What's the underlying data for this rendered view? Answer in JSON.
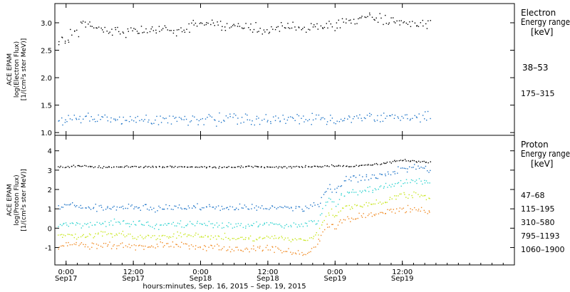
{
  "chart_data": [
    {
      "type": "scatter",
      "instrument_label": "ACE EPAM",
      "ylabel": "log(Electron Flux)",
      "yunit_label": "[1/(cm²s ster MeV)]",
      "ylim": [
        0.95,
        3.35
      ],
      "yticks": [
        "1.0",
        "1.5",
        "2.0",
        "2.5",
        "3.0"
      ],
      "legend_title_1": "Electron",
      "legend_title_2": "Energy range",
      "legend_unit": "[keV]",
      "series": [
        {
          "name": "38–53",
          "color": "#000000",
          "points": [
            [
              -0.5,
              2.7
            ],
            [
              -0.3,
              2.68
            ],
            [
              -0.1,
              2.72
            ],
            [
              0.1,
              2.7
            ],
            [
              0.3,
              2.74
            ],
            [
              0.5,
              2.72
            ],
            [
              0.8,
              2.8
            ],
            [
              1.0,
              2.76
            ],
            [
              1.3,
              2.8
            ],
            [
              1.6,
              2.75
            ],
            [
              1.9,
              2.78
            ],
            [
              2.1,
              2.8
            ],
            [
              2.4,
              3.05
            ],
            [
              3,
              3.02
            ],
            [
              4,
              2.97
            ],
            [
              5,
              2.92
            ],
            [
              6,
              2.88
            ],
            [
              8,
              2.87
            ],
            [
              10,
              2.85
            ],
            [
              12,
              2.86
            ],
            [
              14,
              2.87
            ],
            [
              16,
              2.86
            ],
            [
              18,
              2.88
            ],
            [
              19,
              2.8
            ],
            [
              20,
              2.9
            ],
            [
              22,
              2.95
            ],
            [
              24,
              3.02
            ],
            [
              26,
              3.0
            ],
            [
              28,
              2.96
            ],
            [
              30,
              2.94
            ],
            [
              32,
              2.92
            ],
            [
              34,
              2.9
            ],
            [
              36,
              2.9
            ],
            [
              38,
              2.91
            ],
            [
              40,
              2.93
            ],
            [
              42,
              2.94
            ],
            [
              44,
              2.92
            ],
            [
              46,
              2.93
            ],
            [
              47,
              2.95
            ],
            [
              48,
              2.97
            ],
            [
              50,
              3.0
            ],
            [
              52,
              3.05
            ],
            [
              54,
              3.08
            ],
            [
              56,
              3.07
            ],
            [
              58,
              3.05
            ],
            [
              60,
              3.03
            ],
            [
              62,
              3.02
            ],
            [
              64,
              3.01
            ],
            [
              65,
              3.0
            ]
          ]
        },
        {
          "name": "175–315",
          "color": "#1f74c7",
          "points": [
            [
              -0.5,
              1.24
            ],
            [
              1,
              1.24
            ],
            [
              3,
              1.27
            ],
            [
              5,
              1.25
            ],
            [
              7,
              1.24
            ],
            [
              9,
              1.25
            ],
            [
              11,
              1.23
            ],
            [
              13,
              1.26
            ],
            [
              15,
              1.25
            ],
            [
              17,
              1.24
            ],
            [
              19,
              1.27
            ],
            [
              21,
              1.25
            ],
            [
              23,
              1.26
            ],
            [
              25,
              1.25
            ],
            [
              27,
              1.24
            ],
            [
              29,
              1.26
            ],
            [
              31,
              1.25
            ],
            [
              33,
              1.24
            ],
            [
              35,
              1.26
            ],
            [
              37,
              1.25
            ],
            [
              39,
              1.24
            ],
            [
              41,
              1.26
            ],
            [
              43,
              1.27
            ],
            [
              45,
              1.25
            ],
            [
              47,
              1.24
            ],
            [
              49,
              1.26
            ],
            [
              51,
              1.27
            ],
            [
              53,
              1.28
            ],
            [
              55,
              1.27
            ],
            [
              57,
              1.28
            ],
            [
              59,
              1.29
            ],
            [
              61,
              1.28
            ],
            [
              63,
              1.3
            ],
            [
              65,
              1.29
            ]
          ]
        }
      ]
    },
    {
      "type": "scatter",
      "instrument_label": "ACE EPAM",
      "ylabel": "log(Proton Flux)",
      "yunit_label": "[1/(cm²s ster MeV)]",
      "ylim": [
        -1.9,
        4.8
      ],
      "yticks": [
        "-1",
        "0",
        "1",
        "2",
        "3",
        "4"
      ],
      "legend_title_1": "Proton",
      "legend_title_2": "Energy range",
      "legend_unit": "[keV]",
      "series": [
        {
          "name": "47–68",
          "color": "#000000",
          "points": [
            [
              -0.5,
              3.2
            ],
            [
              2,
              3.25
            ],
            [
              4,
              3.2
            ],
            [
              8,
              3.18
            ],
            [
              12,
              3.2
            ],
            [
              16,
              3.18
            ],
            [
              20,
              3.2
            ],
            [
              24,
              3.18
            ],
            [
              28,
              3.19
            ],
            [
              32,
              3.2
            ],
            [
              36,
              3.18
            ],
            [
              40,
              3.18
            ],
            [
              44,
              3.2
            ],
            [
              46,
              3.22
            ],
            [
              48,
              3.25
            ],
            [
              50,
              3.22
            ],
            [
              52,
              3.24
            ],
            [
              54,
              3.3
            ],
            [
              56,
              3.35
            ],
            [
              58,
              3.45
            ],
            [
              60,
              3.55
            ],
            [
              62,
              3.5
            ],
            [
              64,
              3.45
            ],
            [
              65,
              3.4
            ]
          ]
        },
        {
          "name": "115–195",
          "color": "#1f74c7",
          "points": [
            [
              -0.5,
              1.1
            ],
            [
              1,
              1.25
            ],
            [
              2,
              1.1
            ],
            [
              4,
              1.1
            ],
            [
              8,
              1.05
            ],
            [
              12,
              1.1
            ],
            [
              16,
              1.05
            ],
            [
              20,
              1.1
            ],
            [
              24,
              1.1
            ],
            [
              28,
              1.05
            ],
            [
              32,
              1.1
            ],
            [
              36,
              1.1
            ],
            [
              40,
              1.05
            ],
            [
              43,
              1.1
            ],
            [
              45,
              1.3
            ],
            [
              46,
              1.8
            ],
            [
              47,
              2.2
            ],
            [
              48,
              1.9
            ],
            [
              49,
              2.3
            ],
            [
              50,
              2.55
            ],
            [
              52,
              2.6
            ],
            [
              54,
              2.65
            ],
            [
              56,
              2.75
            ],
            [
              58,
              2.9
            ],
            [
              60,
              3.1
            ],
            [
              62,
              3.2
            ],
            [
              64,
              3.05
            ],
            [
              65,
              2.95
            ]
          ]
        },
        {
          "name": "310–580",
          "color": "#2fd3cf",
          "points": [
            [
              -0.5,
              0.25
            ],
            [
              2,
              0.2
            ],
            [
              4,
              0.25
            ],
            [
              8,
              0.3
            ],
            [
              12,
              0.25
            ],
            [
              16,
              0.15
            ],
            [
              20,
              0.2
            ],
            [
              24,
              0.25
            ],
            [
              28,
              0.2
            ],
            [
              32,
              0.15
            ],
            [
              36,
              0.2
            ],
            [
              40,
              0.15
            ],
            [
              43,
              0.2
            ],
            [
              45,
              0.5
            ],
            [
              46,
              1.1
            ],
            [
              47,
              1.5
            ],
            [
              48,
              1.2
            ],
            [
              49,
              1.7
            ],
            [
              50,
              1.85
            ],
            [
              52,
              1.9
            ],
            [
              54,
              2.0
            ],
            [
              56,
              2.1
            ],
            [
              58,
              2.25
            ],
            [
              60,
              2.4
            ],
            [
              62,
              2.45
            ],
            [
              64,
              2.35
            ],
            [
              65,
              2.3
            ]
          ]
        },
        {
          "name": "795–1193",
          "color": "#c8e61e",
          "points": [
            [
              -0.5,
              -0.35
            ],
            [
              2,
              -0.4
            ],
            [
              4,
              -0.35
            ],
            [
              8,
              -0.3
            ],
            [
              12,
              -0.4
            ],
            [
              16,
              -0.45
            ],
            [
              20,
              -0.3
            ],
            [
              24,
              -0.4
            ],
            [
              28,
              -0.45
            ],
            [
              32,
              -0.5
            ],
            [
              36,
              -0.45
            ],
            [
              40,
              -0.55
            ],
            [
              43,
              -0.6
            ],
            [
              45,
              -0.2
            ],
            [
              46,
              0.4
            ],
            [
              47,
              0.9
            ],
            [
              48,
              0.6
            ],
            [
              49,
              1.0
            ],
            [
              50,
              1.1
            ],
            [
              52,
              1.15
            ],
            [
              54,
              1.25
            ],
            [
              56,
              1.35
            ],
            [
              58,
              1.5
            ],
            [
              60,
              1.7
            ],
            [
              62,
              1.75
            ],
            [
              64,
              1.65
            ],
            [
              65,
              1.6
            ]
          ]
        },
        {
          "name": "1060–1900",
          "color": "#f08a24",
          "points": [
            [
              -0.5,
              -0.9
            ],
            [
              2,
              -0.8
            ],
            [
              4,
              -0.9
            ],
            [
              8,
              -0.85
            ],
            [
              12,
              -0.95
            ],
            [
              16,
              -0.9
            ],
            [
              20,
              -0.8
            ],
            [
              24,
              -0.95
            ],
            [
              28,
              -1.0
            ],
            [
              32,
              -1.1
            ],
            [
              36,
              -1.0
            ],
            [
              40,
              -1.2
            ],
            [
              43,
              -1.3
            ],
            [
              45,
              -0.7
            ],
            [
              46,
              -0.1
            ],
            [
              47,
              0.3
            ],
            [
              48,
              0.0
            ],
            [
              49,
              0.4
            ],
            [
              50,
              0.55
            ],
            [
              52,
              0.6
            ],
            [
              54,
              0.65
            ],
            [
              56,
              0.75
            ],
            [
              58,
              0.9
            ],
            [
              60,
              1.0
            ],
            [
              62,
              1.0
            ],
            [
              64,
              0.9
            ],
            [
              65,
              0.85
            ]
          ]
        }
      ]
    }
  ],
  "x_axis": {
    "xlim": [
      -2,
      80
    ],
    "ticks": [
      {
        "hours": 0,
        "time": "0:00",
        "date": "Sep17"
      },
      {
        "hours": 12,
        "time": "12:00",
        "date": "Sep17"
      },
      {
        "hours": 24,
        "time": "0:00",
        "date": "Sep18"
      },
      {
        "hours": 36,
        "time": "12:00",
        "date": "Sep18"
      },
      {
        "hours": 48,
        "time": "0:00",
        "date": "Sep19"
      },
      {
        "hours": 60,
        "time": "12:00",
        "date": "Sep19"
      }
    ],
    "label": "hours:minutes, Sep. 16, 2015 – Sep. 19, 2015"
  }
}
